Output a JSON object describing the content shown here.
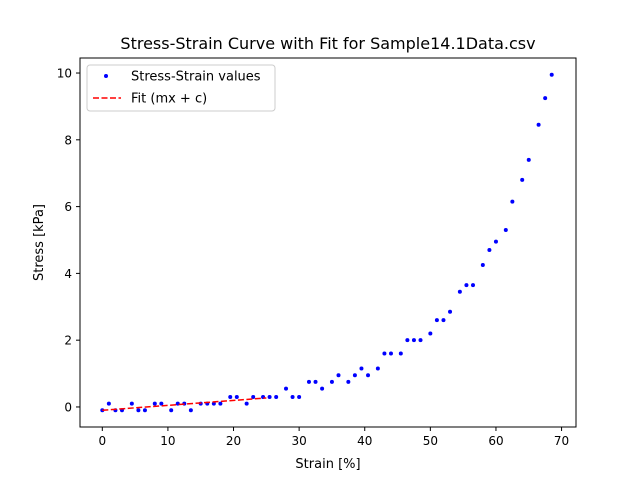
{
  "chart_data": {
    "type": "scatter",
    "title": "Stress-Strain Curve with Fit for Sample14.1Data.csv",
    "xlabel": "Strain [%]",
    "ylabel": "Stress [kPa]",
    "xlim": [
      -3.4,
      72.2
    ],
    "ylim": [
      -0.6,
      10.45
    ],
    "xticks": [
      0,
      10,
      20,
      30,
      40,
      50,
      60,
      70
    ],
    "yticks": [
      0,
      2,
      4,
      6,
      8,
      10
    ],
    "grid": false,
    "legend_position": "top-left",
    "series": [
      {
        "name": "Stress-Strain values",
        "kind": "scatter",
        "color": "#0000ff",
        "x": [
          0,
          1,
          2,
          3,
          4.5,
          5.5,
          6.5,
          8,
          9,
          10.5,
          11.5,
          12.5,
          13.5,
          15,
          16,
          17,
          18,
          19.5,
          20.5,
          22,
          23,
          24.5,
          25.5,
          26.5,
          28,
          29,
          30,
          31.5,
          32.5,
          33.5,
          35,
          36,
          37.5,
          38.5,
          39.5,
          40.5,
          42,
          43,
          44,
          45.5,
          46.5,
          47.5,
          48.5,
          50,
          51,
          52,
          53,
          54.5,
          55.5,
          56.5,
          58,
          59,
          60,
          61.5,
          62.5,
          64,
          65,
          66.5,
          67.5,
          68.5
        ],
        "y": [
          -0.1,
          0.1,
          -0.1,
          -0.1,
          0.1,
          -0.1,
          -0.1,
          0.1,
          0.1,
          -0.1,
          0.1,
          0.1,
          -0.1,
          0.1,
          0.1,
          0.1,
          0.1,
          0.3,
          0.3,
          0.1,
          0.3,
          0.3,
          0.3,
          0.3,
          0.55,
          0.3,
          0.3,
          0.75,
          0.75,
          0.55,
          0.75,
          0.95,
          0.75,
          0.95,
          1.15,
          0.95,
          1.15,
          1.6,
          1.6,
          1.6,
          2.0,
          2.0,
          2.0,
          2.2,
          2.6,
          2.6,
          2.85,
          3.45,
          3.65,
          3.65,
          4.25,
          4.7,
          4.95,
          5.3,
          6.15,
          6.8,
          7.4,
          8.45,
          9.25,
          9.95
        ]
      },
      {
        "name": "Fit (mx + c)",
        "kind": "line",
        "color": "#ff0000",
        "dash": "dashed",
        "x": [
          0,
          25
        ],
        "y": [
          -0.1,
          0.27
        ]
      }
    ]
  }
}
